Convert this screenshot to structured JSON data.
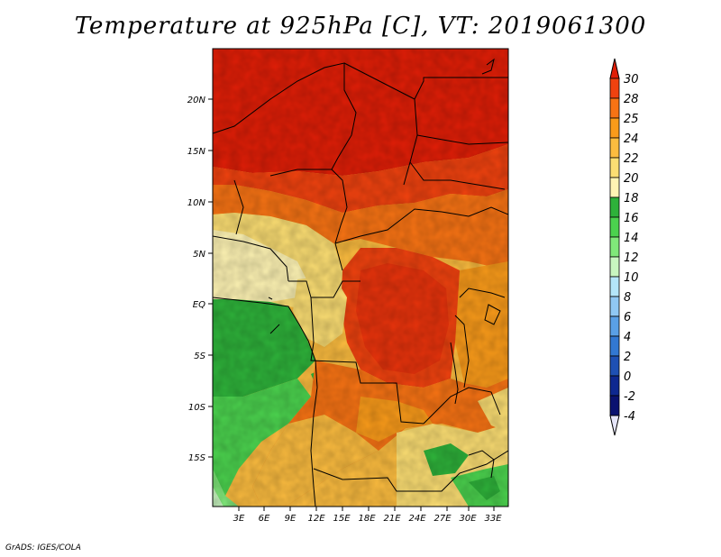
{
  "title": "Temperature at 925hPa [C], VT: 2019061300",
  "credit": "GrADS: IGES/COLA",
  "map": {
    "lon_range": [
      0,
      34
    ],
    "lat_range": [
      -20,
      25
    ],
    "lat_ticks": [
      "20N",
      "15N",
      "10N",
      "5N",
      "EQ",
      "5S",
      "10S",
      "15S"
    ],
    "lon_ticks": [
      "3E",
      "6E",
      "9E",
      "12E",
      "15E",
      "18E",
      "21E",
      "24E",
      "27E",
      "30E",
      "33E"
    ]
  },
  "colorbar": {
    "levels": [
      "30",
      "28",
      "25",
      "24",
      "22",
      "20",
      "18",
      "16",
      "14",
      "12",
      "10",
      "8",
      "6",
      "4",
      "2",
      "0",
      "-2",
      "-4"
    ],
    "colors": [
      "#e01e07",
      "#f0420f",
      "#f77314",
      "#fa9b1a",
      "#fcbc3f",
      "#fcde73",
      "#fff4b4",
      "#2eb23a",
      "#4bd24e",
      "#80e87a",
      "#c8f6c0",
      "#b4e6fa",
      "#90c8f4",
      "#5aa0e6",
      "#3278d2",
      "#1e50b4",
      "#0e2890",
      "#0a1270",
      "#e6e6fa"
    ]
  }
}
